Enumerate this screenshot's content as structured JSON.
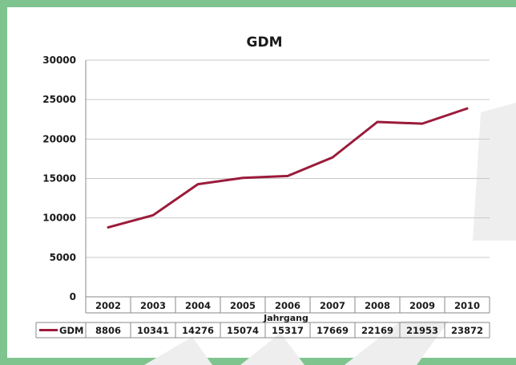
{
  "chart_data": {
    "type": "line",
    "title": "GDM",
    "xlabel": "Jahrgang",
    "ylabel": "",
    "categories": [
      "2002",
      "2003",
      "2004",
      "2005",
      "2006",
      "2007",
      "2008",
      "2009",
      "2010"
    ],
    "series": [
      {
        "name": "GDM",
        "values": [
          8806,
          10341,
          14276,
          15074,
          15317,
          17669,
          22169,
          21953,
          23872
        ]
      }
    ],
    "value_labels": [
      "8806",
      "10341",
      "14276",
      "15074",
      "15317",
      "17669",
      "22169",
      "21953",
      "23872"
    ],
    "ylim": [
      0,
      30000
    ],
    "yticks": [
      "0",
      "5000",
      "10000",
      "15000",
      "20000",
      "25000",
      "30000"
    ],
    "grid": true,
    "legend": "data-table-bottom",
    "data_table": true
  },
  "colors": {
    "series": "#9b1b3b",
    "frame": "#7fc48f",
    "grid": "#c9c9c9",
    "axis": "#888888",
    "watermark": "#eeeeee"
  }
}
